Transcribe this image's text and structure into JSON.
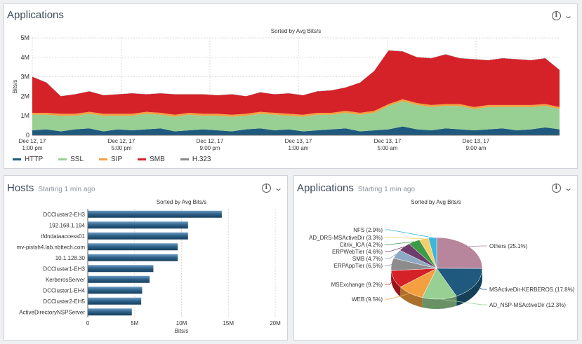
{
  "top_panel": {
    "title": "Applications"
  },
  "hosts_panel": {
    "title": "Hosts",
    "subtitle": "Starting 1 min ago"
  },
  "pie_panel": {
    "title": "Applications",
    "subtitle": "Starting 1 min ago"
  },
  "icons": {
    "info": "info-icon",
    "menu": "chevron-down-icon"
  },
  "chart_data": [
    {
      "type": "area",
      "title": "Sorted by Avg Bits/s",
      "ylabel": "Bits/s",
      "ylim": [
        0,
        5
      ],
      "y_ticks": [
        "0",
        "1M",
        "2M",
        "3M",
        "4M",
        "5M"
      ],
      "x_ticks": [
        {
          "l1": "Dec 12, 17",
          "l2": "1:00 pm"
        },
        {
          "l1": "Dec 12, 17",
          "l2": "5:00 pm"
        },
        {
          "l1": "Dec 12, 17",
          "l2": "9:00 pm"
        },
        {
          "l1": "Dec 13, 17",
          "l2": "1:00 am"
        },
        {
          "l1": "Dec 13, 17",
          "l2": "5:00 am"
        },
        {
          "l1": "Dec 13, 17",
          "l2": "9:00 am"
        }
      ],
      "legend_position": "bottom-left",
      "stacked": true,
      "series": [
        {
          "name": "HTTP",
          "color": "#1f5a7e",
          "values": [
            0.25,
            0.3,
            0.2,
            0.3,
            0.35,
            0.2,
            0.3,
            0.25,
            0.3,
            0.35,
            0.2,
            0.25,
            0.3,
            0.25,
            0.2,
            0.3,
            0.35,
            0.25,
            0.3,
            0.2,
            0.25,
            0.3,
            0.35,
            0.2,
            0.25,
            0.3,
            0.45,
            0.3,
            0.25,
            0.35,
            0.3,
            0.25,
            0.3,
            0.35,
            0.25,
            0.3,
            0.4,
            0.3
          ]
        },
        {
          "name": "SSL",
          "color": "#98cf92",
          "values": [
            0.8,
            0.75,
            0.8,
            0.7,
            0.75,
            0.8,
            0.7,
            0.75,
            0.8,
            0.7,
            0.75,
            0.8,
            0.7,
            0.75,
            0.75,
            0.7,
            0.75,
            0.8,
            0.7,
            0.75,
            0.8,
            0.75,
            0.8,
            0.85,
            0.9,
            1.2,
            1.3,
            1.25,
            1.2,
            1.15,
            1.2,
            1.1,
            1.15,
            1.1,
            1.2,
            1.15,
            1.1,
            1.05
          ]
        },
        {
          "name": "SIP",
          "color": "#f5a040",
          "values": [
            0.1,
            0.1,
            0.1,
            0.1,
            0.1,
            0.1,
            0.1,
            0.1,
            0.1,
            0.1,
            0.1,
            0.1,
            0.1,
            0.1,
            0.1,
            0.1,
            0.1,
            0.1,
            0.1,
            0.1,
            0.1,
            0.1,
            0.1,
            0.1,
            0.1,
            0.1,
            0.1,
            0.1,
            0.1,
            0.1,
            0.1,
            0.1,
            0.1,
            0.1,
            0.1,
            0.1,
            0.1,
            0.1
          ]
        },
        {
          "name": "SMB",
          "color": "#d52128",
          "values": [
            1.85,
            1.55,
            0.9,
            1.0,
            1.05,
            0.95,
            1.0,
            1.05,
            0.9,
            1.0,
            1.05,
            0.95,
            1.0,
            0.95,
            1.05,
            0.9,
            1.0,
            0.95,
            1.05,
            1.0,
            1.1,
            1.15,
            1.2,
            1.55,
            2.05,
            2.75,
            2.45,
            2.35,
            2.4,
            2.55,
            2.35,
            2.45,
            2.3,
            2.4,
            2.35,
            2.3,
            2.35,
            1.9
          ]
        },
        {
          "name": "H.323",
          "color": "#888888",
          "values": [
            0.01,
            0.01,
            0.01,
            0.01,
            0.01,
            0.01,
            0.01,
            0.01,
            0.01,
            0.01,
            0.01,
            0.01,
            0.01,
            0.01,
            0.01,
            0.01,
            0.01,
            0.01,
            0.01,
            0.01,
            0.01,
            0.01,
            0.01,
            0.01,
            0.01,
            0.01,
            0.01,
            0.01,
            0.01,
            0.01,
            0.01,
            0.01,
            0.01,
            0.01,
            0.01,
            0.01,
            0.01,
            0.01
          ]
        }
      ]
    },
    {
      "type": "bar",
      "orientation": "horizontal",
      "title": "Sorted by Avg Bits/s",
      "xlabel": "Bits/s",
      "xlim": [
        0,
        20
      ],
      "x_ticks": [
        "0",
        "5M",
        "10M",
        "15M",
        "20M"
      ],
      "categories": [
        "DCCluster2-EH3",
        "192.168.1.194",
        "tfdndataaccess01",
        "mv-pistsh4.lab.nbttech.com",
        "10.1.128.30",
        "DCCluster1-EH3",
        "KerberosServer",
        "DCCluster1-EH4",
        "DCCluster2-EH5",
        "ActiveDirectoryNSPServer"
      ],
      "values": [
        14.3,
        10.7,
        10.7,
        9.6,
        9.6,
        7.0,
        6.6,
        5.8,
        5.7,
        4.7
      ],
      "color": "#2c5f86"
    },
    {
      "type": "pie",
      "title": "Sorted by Avg Bits/s",
      "slices": [
        {
          "label": "Others (25.1%)",
          "value": 25.1,
          "color": "#b7859c"
        },
        {
          "label": "MSActiveDir-KERBEROS (17.8%)",
          "value": 17.8,
          "color": "#1f5a7e"
        },
        {
          "label": "AD_NSP-MSActiveDir (12.3%)",
          "value": 12.3,
          "color": "#98cf92"
        },
        {
          "label": "WEB (9.5%)",
          "value": 9.5,
          "color": "#f5a040"
        },
        {
          "label": "MSExchange (9.2%)",
          "value": 9.2,
          "color": "#d52128"
        },
        {
          "label": "ERPAppTier (6.5%)",
          "value": 6.5,
          "color": "#8c8c8c"
        },
        {
          "label": "SMB (4.7%)",
          "value": 4.7,
          "color": "#8fa9c4"
        },
        {
          "label": "ERPWebTier (4.6%)",
          "value": 4.6,
          "color": "#6f3d6b"
        },
        {
          "label": "Citrix_ICA (4.2%)",
          "value": 4.2,
          "color": "#3d9a48"
        },
        {
          "label": "AD_DRS-MSActiveDir (3.3%)",
          "value": 3.3,
          "color": "#f3cf6b"
        },
        {
          "label": "NFS (2.9%)",
          "value": 2.9,
          "color": "#39b7dd"
        }
      ]
    }
  ]
}
